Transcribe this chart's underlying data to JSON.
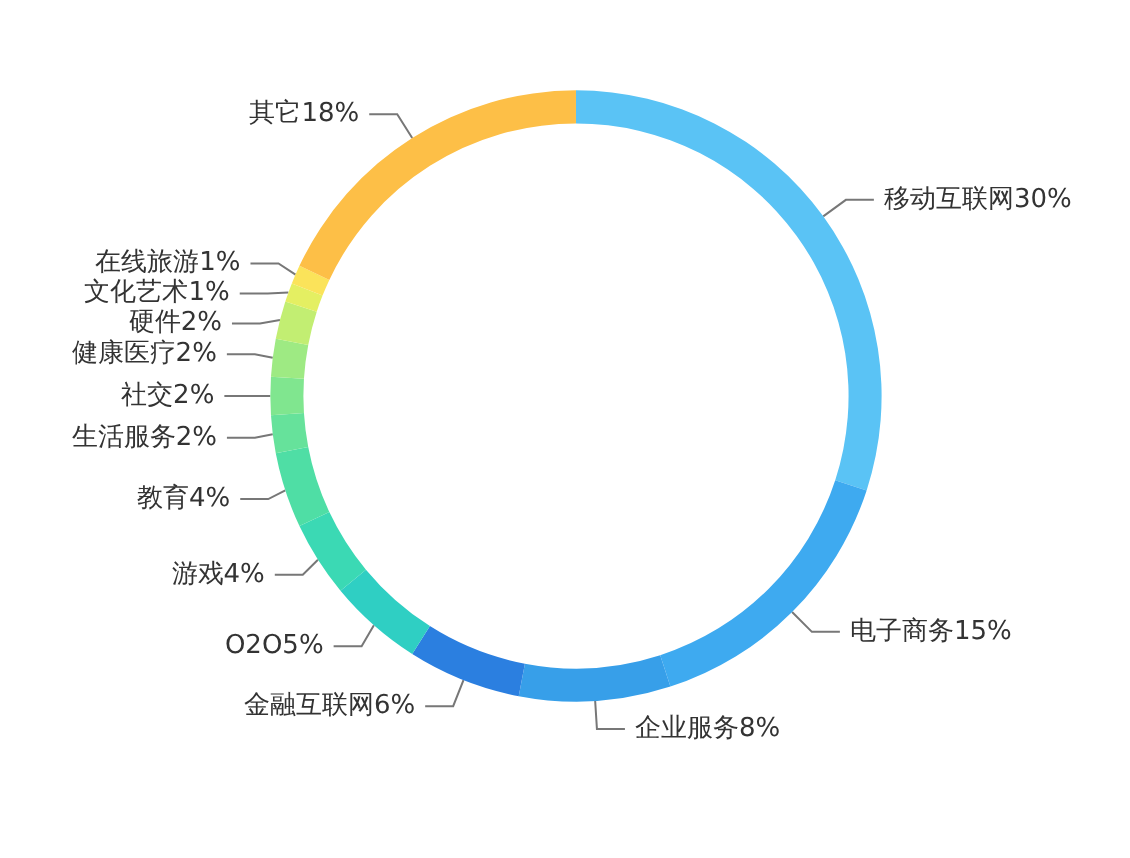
{
  "chart_data": {
    "type": "donut",
    "categories": [
      "移动互联网",
      "电子商务",
      "企业服务",
      "金融互联网",
      "O2O",
      "游戏",
      "教育",
      "生活服务",
      "社交",
      "健康医疗",
      "硬件",
      "文化艺术",
      "在线旅游",
      "其它"
    ],
    "values": [
      30,
      15,
      8,
      6,
      5,
      4,
      4,
      2,
      2,
      2,
      2,
      1,
      1,
      18
    ],
    "value_labels": [
      "30%",
      "15%",
      "8%",
      "6%",
      "5%",
      "4%",
      "4%",
      "2%",
      "2%",
      "2%",
      "2%",
      "1%",
      "1%",
      "18%"
    ],
    "colors": [
      "#5ac3f5",
      "#3eaaf0",
      "#379fe9",
      "#2b7fe0",
      "#2fcfc3",
      "#3bd9b4",
      "#4fdea5",
      "#66e29b",
      "#80e68f",
      "#9eea83",
      "#c2ee72",
      "#e4ef62",
      "#fbe35a",
      "#fdbf47"
    ],
    "legend": false
  }
}
